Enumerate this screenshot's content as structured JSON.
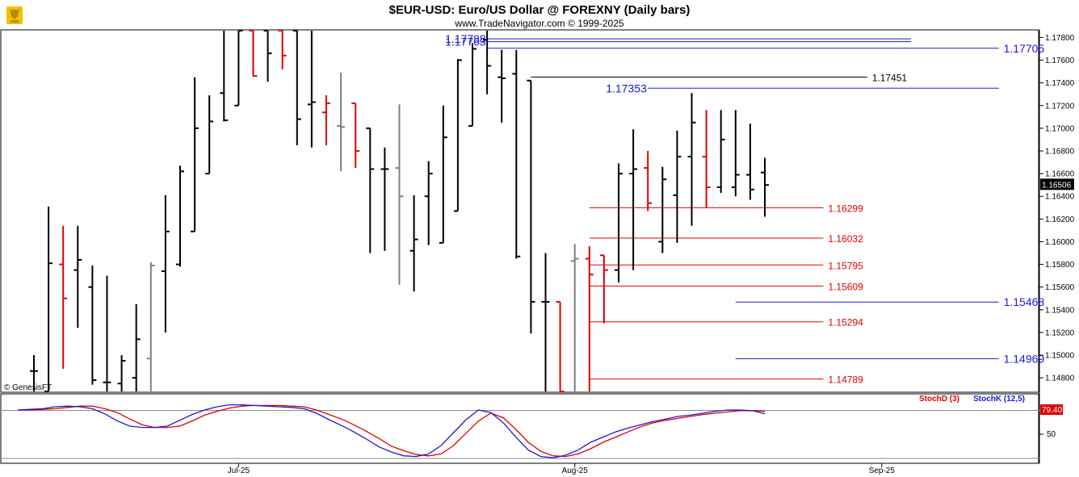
{
  "header": {
    "title": "$EUR-USD:  Euro/US Dollar @ FOREXNY  (Daily bars)",
    "subtitle": "www.TradeNavigator.com © 1999-2025",
    "logo_icon": "trophy-logo-icon",
    "copyright_corner": "© GenesisFT"
  },
  "colors": {
    "up_bar": "#000000",
    "down_bar": "#e00000",
    "neutral_bar": "#808080",
    "level_blue": "#1a1ad6",
    "level_black": "#000000",
    "level_red": "#e00000",
    "stoch_d": "#e00000",
    "stoch_k": "#1a1ad6"
  },
  "chart_data": [
    {
      "type": "ohlc",
      "title": "$EUR-USD:  Euro/US Dollar @ FOREXNY  (Daily bars)",
      "y_ticks": [
        "1.17800",
        "1.17600",
        "1.17400",
        "1.17200",
        "1.17000",
        "1.16800",
        "1.16600",
        "1.16400",
        "1.16200",
        "1.16000",
        "1.15800",
        "1.15600",
        "1.15400",
        "1.15200",
        "1.15000",
        "1.14800"
      ],
      "ylim": [
        1.1468,
        1.1786
      ],
      "last_price": "1.16506",
      "x_ticks": [
        {
          "label": "Jul-25",
          "index": 14
        },
        {
          "label": "Aug-25",
          "index": 37
        },
        {
          "label": "Sep-25",
          "index": 58
        }
      ],
      "bars": [
        {
          "o": 1.1486,
          "h": 1.15,
          "l": 1.1468,
          "c": 1.1486,
          "color": "black"
        },
        {
          "o": 1.1468,
          "h": 1.1631,
          "l": 1.1468,
          "c": 1.1581,
          "color": "black"
        },
        {
          "o": 1.158,
          "h": 1.1614,
          "l": 1.1488,
          "c": 1.155,
          "color": "red"
        },
        {
          "o": 1.1575,
          "h": 1.1614,
          "l": 1.1524,
          "c": 1.1584,
          "color": "black"
        },
        {
          "o": 1.156,
          "h": 1.1579,
          "l": 1.1474,
          "c": 1.1478,
          "color": "black"
        },
        {
          "o": 1.1476,
          "h": 1.157,
          "l": 1.1468,
          "c": 1.1476,
          "color": "black"
        },
        {
          "o": 1.1475,
          "h": 1.15,
          "l": 1.1468,
          "c": 1.1495,
          "color": "black"
        },
        {
          "o": 1.148,
          "h": 1.1545,
          "l": 1.1468,
          "c": 1.1514,
          "color": "black"
        },
        {
          "o": 1.1497,
          "h": 1.1582,
          "l": 1.1468,
          "c": 1.1579,
          "color": "grey"
        },
        {
          "o": 1.1574,
          "h": 1.1641,
          "l": 1.152,
          "c": 1.1609,
          "color": "black"
        },
        {
          "o": 1.158,
          "h": 1.1667,
          "l": 1.1578,
          "c": 1.1662,
          "color": "black"
        },
        {
          "o": 1.1609,
          "h": 1.1745,
          "l": 1.1609,
          "c": 1.17,
          "color": "black"
        },
        {
          "o": 1.166,
          "h": 1.1729,
          "l": 1.166,
          "c": 1.1706,
          "color": "black"
        },
        {
          "o": 1.1731,
          "h": 1.1786,
          "l": 1.1706,
          "c": 1.1707,
          "color": "black"
        },
        {
          "o": 1.172,
          "h": 1.1786,
          "l": 1.172,
          "c": 1.1786,
          "color": "black"
        },
        {
          "o": 1.1786,
          "h": 1.1786,
          "l": 1.1746,
          "c": 1.1746,
          "color": "red"
        },
        {
          "o": 1.1786,
          "h": 1.1786,
          "l": 1.1741,
          "c": 1.1766,
          "color": "black"
        },
        {
          "o": 1.1786,
          "h": 1.1786,
          "l": 1.1752,
          "c": 1.1764,
          "color": "red"
        },
        {
          "o": 1.1786,
          "h": 1.1786,
          "l": 1.1685,
          "c": 1.1708,
          "color": "black"
        },
        {
          "o": 1.1721,
          "h": 1.1786,
          "l": 1.1683,
          "c": 1.1723,
          "color": "black"
        },
        {
          "o": 1.1714,
          "h": 1.1729,
          "l": 1.1685,
          "c": 1.1722,
          "color": "red"
        },
        {
          "o": 1.1702,
          "h": 1.1749,
          "l": 1.1662,
          "c": 1.1701,
          "color": "grey"
        },
        {
          "o": 1.1722,
          "h": 1.1722,
          "l": 1.1665,
          "c": 1.168,
          "color": "red"
        },
        {
          "o": 1.17,
          "h": 1.17,
          "l": 1.159,
          "c": 1.1664,
          "color": "black"
        },
        {
          "o": 1.1664,
          "h": 1.1683,
          "l": 1.1592,
          "c": 1.1664,
          "color": "black"
        },
        {
          "o": 1.1665,
          "h": 1.1721,
          "l": 1.1562,
          "c": 1.164,
          "color": "grey"
        },
        {
          "o": 1.1592,
          "h": 1.1641,
          "l": 1.1556,
          "c": 1.1602,
          "color": "black"
        },
        {
          "o": 1.164,
          "h": 1.1671,
          "l": 1.1597,
          "c": 1.166,
          "color": "black"
        },
        {
          "o": 1.1599,
          "h": 1.172,
          "l": 1.1599,
          "c": 1.1692,
          "color": "black"
        },
        {
          "o": 1.1627,
          "h": 1.1761,
          "l": 1.1627,
          "c": 1.176,
          "color": "black"
        },
        {
          "o": 1.1702,
          "h": 1.1775,
          "l": 1.1702,
          "c": 1.177,
          "color": "black"
        },
        {
          "o": 1.1778,
          "h": 1.1786,
          "l": 1.173,
          "c": 1.1755,
          "color": "black"
        },
        {
          "o": 1.1745,
          "h": 1.1769,
          "l": 1.1705,
          "c": 1.1744,
          "color": "black"
        },
        {
          "o": 1.1748,
          "h": 1.1769,
          "l": 1.1585,
          "c": 1.1587,
          "color": "black"
        },
        {
          "o": 1.1742,
          "h": 1.1742,
          "l": 1.1519,
          "c": 1.1547,
          "color": "black"
        },
        {
          "o": 1.1547,
          "h": 1.159,
          "l": 1.1468,
          "c": 1.1547,
          "color": "black"
        },
        {
          "o": 1.1547,
          "h": 1.1547,
          "l": 1.1468,
          "c": 1.1468,
          "color": "red"
        },
        {
          "o": 1.1583,
          "h": 1.1598,
          "l": 1.1468,
          "c": 1.1585,
          "color": "grey"
        },
        {
          "o": 1.1585,
          "h": 1.1596,
          "l": 1.1468,
          "c": 1.1571,
          "color": "red"
        },
        {
          "o": 1.1588,
          "h": 1.1588,
          "l": 1.1528,
          "c": 1.1575,
          "color": "red"
        },
        {
          "o": 1.1575,
          "h": 1.1669,
          "l": 1.1564,
          "c": 1.166,
          "color": "black"
        },
        {
          "o": 1.166,
          "h": 1.1699,
          "l": 1.1575,
          "c": 1.1664,
          "color": "black"
        },
        {
          "o": 1.1665,
          "h": 1.168,
          "l": 1.1627,
          "c": 1.1634,
          "color": "red"
        },
        {
          "o": 1.16,
          "h": 1.1666,
          "l": 1.159,
          "c": 1.1655,
          "color": "black"
        },
        {
          "o": 1.1641,
          "h": 1.1698,
          "l": 1.1599,
          "c": 1.1675,
          "color": "black"
        },
        {
          "o": 1.1675,
          "h": 1.1731,
          "l": 1.1614,
          "c": 1.1705,
          "color": "black"
        },
        {
          "o": 1.1675,
          "h": 1.1716,
          "l": 1.163,
          "c": 1.1648,
          "color": "red"
        },
        {
          "o": 1.1648,
          "h": 1.1716,
          "l": 1.1643,
          "c": 1.169,
          "color": "black"
        },
        {
          "o": 1.1648,
          "h": 1.1716,
          "l": 1.164,
          "c": 1.1659,
          "color": "black"
        },
        {
          "o": 1.1659,
          "h": 1.1704,
          "l": 1.1637,
          "c": 1.1646,
          "color": "black"
        },
        {
          "o": 1.1661,
          "h": 1.1674,
          "l": 1.1622,
          "c": 1.165,
          "color": "black"
        }
      ],
      "levels": [
        {
          "price": 1.17788,
          "label": "1.17788",
          "color": "blue",
          "label_pos": "left",
          "size": "big",
          "span": [
            31,
            60
          ]
        },
        {
          "price": 1.17763,
          "label": "1.17763",
          "color": "blue",
          "label_pos": "left",
          "size": "big",
          "span": [
            31,
            60
          ]
        },
        {
          "price": 1.17705,
          "label": "1.17705",
          "color": "blue",
          "label_pos": "right",
          "size": "big",
          "span": [
            31,
            66
          ]
        },
        {
          "price": 1.17451,
          "label": "1.17451",
          "color": "black",
          "label_pos": "right",
          "size": "small",
          "span": [
            34,
            57
          ]
        },
        {
          "price": 1.17353,
          "label": "1.17353",
          "color": "blue",
          "label_pos": "left",
          "size": "big",
          "span": [
            42,
            66
          ]
        },
        {
          "price": 1.16299,
          "label": "1.16299",
          "color": "red",
          "label_pos": "right",
          "size": "small",
          "span": [
            38,
            54
          ]
        },
        {
          "price": 1.16032,
          "label": "1.16032",
          "color": "red",
          "label_pos": "right",
          "size": "small",
          "span": [
            38,
            54
          ]
        },
        {
          "price": 1.15795,
          "label": "1.15795",
          "color": "red",
          "label_pos": "right",
          "size": "small",
          "span": [
            38,
            54
          ]
        },
        {
          "price": 1.15609,
          "label": "1.15609",
          "color": "red",
          "label_pos": "right",
          "size": "small",
          "span": [
            38,
            54
          ]
        },
        {
          "price": 1.15468,
          "label": "1.15468",
          "color": "blue",
          "label_pos": "right",
          "size": "big",
          "span": [
            48,
            66
          ]
        },
        {
          "price": 1.15294,
          "label": "1.15294",
          "color": "red",
          "label_pos": "right",
          "size": "small",
          "span": [
            38,
            54
          ]
        },
        {
          "price": 1.14969,
          "label": "1.14969",
          "color": "blue",
          "label_pos": "right",
          "size": "big",
          "span": [
            48,
            66
          ]
        },
        {
          "price": 1.14789,
          "label": "1.14789",
          "color": "red",
          "label_pos": "right",
          "size": "small",
          "span": [
            38,
            54
          ]
        }
      ]
    },
    {
      "type": "line",
      "legend": [
        {
          "name": "StochD (3)",
          "color": "red"
        },
        {
          "name": "StochK (12,5)",
          "color": "blue"
        }
      ],
      "ylim": [
        0,
        100
      ],
      "y_ticks": [
        "50"
      ],
      "last_value": "79.40",
      "series": [
        {
          "name": "StochD (3)",
          "values": [
            80,
            80,
            81,
            82,
            84,
            86,
            86,
            82,
            76,
            66,
            57,
            53,
            53,
            55,
            63,
            72,
            78,
            83,
            86,
            87,
            87,
            87,
            86,
            85,
            80,
            73,
            66,
            57,
            47,
            36,
            24,
            17,
            11,
            9,
            12,
            25,
            44,
            63,
            75,
            68,
            50,
            30,
            16,
            9,
            8,
            12,
            20,
            30,
            38,
            46,
            54,
            60,
            64,
            67,
            70,
            73,
            75,
            77,
            79,
            79,
            78
          ]
        },
        {
          "name": "StochK (12,5)",
          "values": [
            80,
            81,
            82,
            85,
            86,
            85,
            82,
            74,
            63,
            55,
            53,
            53,
            55,
            64,
            73,
            80,
            85,
            88,
            88,
            87,
            86,
            85,
            84,
            82,
            75,
            65,
            56,
            46,
            35,
            23,
            15,
            9,
            8,
            12,
            25,
            45,
            65,
            80,
            76,
            60,
            38,
            18,
            8,
            6,
            10,
            18,
            30,
            38,
            46,
            52,
            57,
            62,
            66,
            70,
            72,
            75,
            78,
            80,
            80,
            79,
            74
          ]
        }
      ]
    }
  ]
}
